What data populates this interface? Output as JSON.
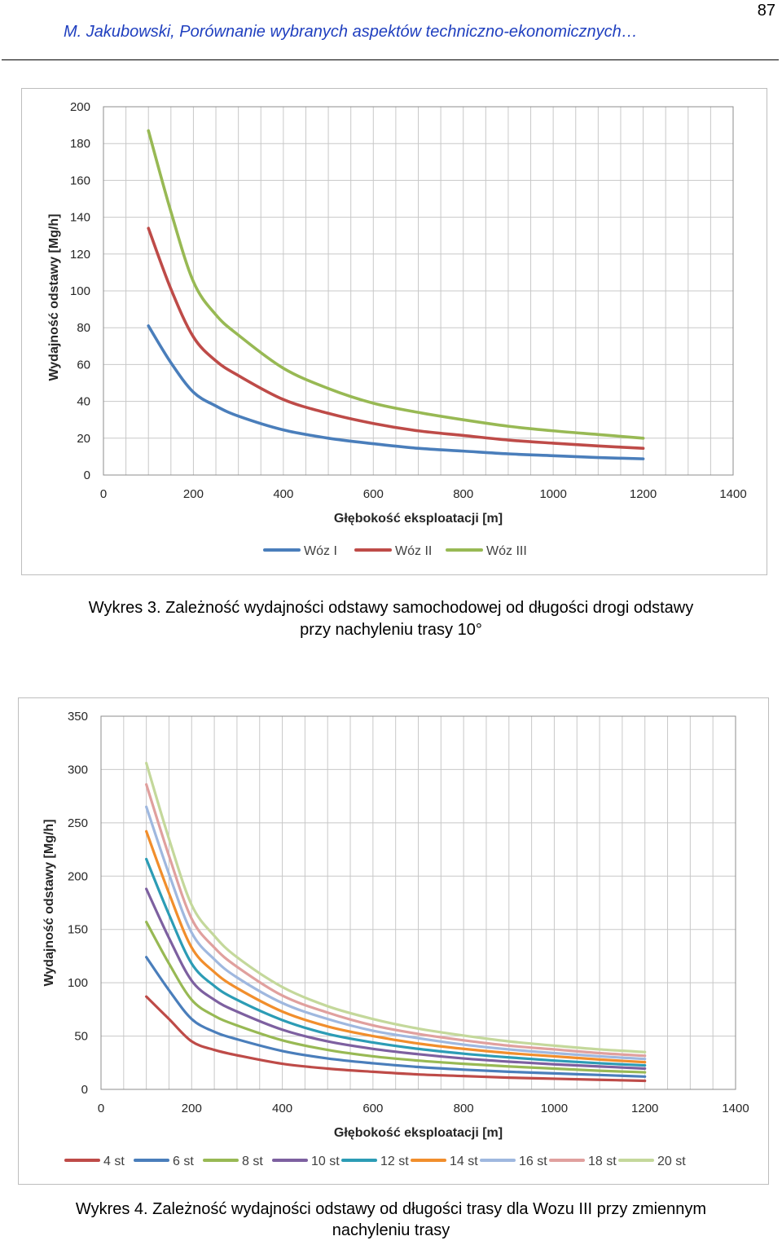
{
  "header": {
    "running_title": "M. Jakubowski, Porównanie wybranych aspektów techniczno-ekonomicznych…",
    "page_number": "87"
  },
  "figures": [
    {
      "caption_line1": "Wykres 3. Zależność wydajności odstawy samochodowej od długości drogi odstawy",
      "caption_line2": "przy nachyleniu trasy 10°"
    },
    {
      "caption_line1": "Wykres 4. Zależność wydajności odstawy od długości trasy dla Wozu III przy zmiennym",
      "caption_line2": "nachyleniu trasy"
    }
  ],
  "chart_data": [
    {
      "type": "line",
      "title": "",
      "xlabel": "Głębokość eksploatacji [m]",
      "ylabel": "Wydajność odstawy [Mg/h]",
      "xlim": [
        0,
        1400
      ],
      "ylim": [
        0,
        200
      ],
      "xticks": [
        0,
        200,
        400,
        600,
        800,
        1000,
        1200,
        1400
      ],
      "yticks": [
        0,
        20,
        40,
        60,
        80,
        100,
        120,
        140,
        160,
        180,
        200
      ],
      "grid": true,
      "legend": "bottom",
      "x": [
        100,
        150,
        200,
        250,
        300,
        400,
        500,
        600,
        700,
        800,
        900,
        1000,
        1100,
        1200
      ],
      "series": [
        {
          "name": "Wóz I",
          "color": "#4a7ebb",
          "values": [
            81,
            61,
            45,
            37.5,
            32,
            24.5,
            20,
            17,
            14.5,
            13,
            11.5,
            10.5,
            9.5,
            8.8
          ]
        },
        {
          "name": "Wóz II",
          "color": "#be4b48",
          "values": [
            134,
            101,
            75,
            62,
            54,
            41,
            33.5,
            28,
            24,
            21.5,
            19,
            17.3,
            15.8,
            14.5
          ]
        },
        {
          "name": "Wóz III",
          "color": "#98b954",
          "values": [
            187,
            143,
            105,
            87,
            76,
            58,
            47,
            39,
            34,
            30,
            26.5,
            24,
            22,
            20
          ]
        }
      ]
    },
    {
      "type": "line",
      "title": "",
      "xlabel": "Głębokość eksploatacji [m]",
      "ylabel": "Wydajność odstawy [Mg/h]",
      "xlim": [
        0,
        1400
      ],
      "ylim": [
        0,
        350
      ],
      "xticks": [
        0,
        200,
        400,
        600,
        800,
        1000,
        1200,
        1400
      ],
      "yticks": [
        0,
        50,
        100,
        150,
        200,
        250,
        300,
        350
      ],
      "grid": true,
      "legend": "bottom",
      "x": [
        100,
        150,
        200,
        250,
        300,
        400,
        500,
        600,
        700,
        800,
        900,
        1000,
        1100,
        1200
      ],
      "series": [
        {
          "name": "4 st",
          "color": "#be4b48",
          "values": [
            87,
            66,
            45,
            37,
            32,
            24,
            19.5,
            16.5,
            14,
            12.5,
            11,
            10,
            9,
            8
          ]
        },
        {
          "name": "6 st",
          "color": "#4a7ebb",
          "values": [
            124,
            93,
            66,
            54,
            47,
            36,
            29,
            24.5,
            21,
            18.5,
            16.5,
            15,
            13.5,
            12
          ]
        },
        {
          "name": "8 st",
          "color": "#98b954",
          "values": [
            157,
            118,
            84,
            69,
            60,
            46,
            37,
            31,
            27,
            24,
            21.5,
            19.5,
            17.5,
            16
          ]
        },
        {
          "name": "10 st",
          "color": "#7d60a0",
          "values": [
            188,
            142,
            102,
            84,
            73,
            56,
            45,
            38,
            33,
            29,
            26,
            23.5,
            21.5,
            19.5
          ]
        },
        {
          "name": "12 st",
          "color": "#2c9cb5",
          "values": [
            216,
            164,
            118,
            97,
            84,
            65,
            52,
            44,
            38,
            33.5,
            30,
            27,
            24.5,
            22.5
          ]
        },
        {
          "name": "14 st",
          "color": "#f18e2c",
          "values": [
            242,
            184,
            133,
            110,
            95,
            73,
            59,
            50,
            43,
            38,
            34,
            31,
            28,
            25.5
          ]
        },
        {
          "name": "16 st",
          "color": "#9fb8df",
          "values": [
            265,
            202,
            147,
            122,
            105,
            81,
            66,
            55,
            48,
            42,
            37.5,
            34,
            31,
            28.5
          ]
        },
        {
          "name": "18 st",
          "color": "#e0a09e",
          "values": [
            286,
            219,
            160,
            133,
            115,
            88,
            72,
            60,
            52,
            46,
            41,
            37.5,
            34,
            31.5
          ]
        },
        {
          "name": "20 st",
          "color": "#c4d89b",
          "values": [
            306,
            235,
            173,
            144,
            124,
            96,
            78,
            66,
            57,
            50.5,
            45,
            41,
            37.5,
            35
          ]
        }
      ]
    }
  ]
}
